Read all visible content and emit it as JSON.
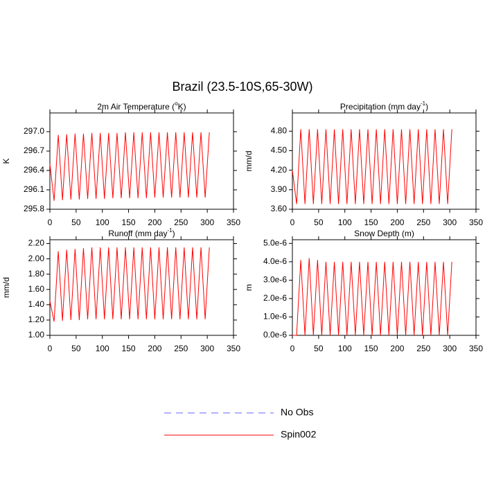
{
  "title": "Brazil (23.5-10S,65-30W)",
  "legend": [
    {
      "name": "No Obs",
      "color": "#6666ff",
      "dashed": true
    },
    {
      "name": "Spin002",
      "color": "#ff0000",
      "dashed": false
    }
  ],
  "chart_data": [
    {
      "type": "line",
      "title": "2m Air Temperature (",
      "title_sup": "o",
      "title_end": "K)",
      "ylabel": "K",
      "xlim": [
        0,
        350
      ],
      "xticks": [
        0,
        50,
        100,
        150,
        200,
        250,
        300,
        350
      ],
      "ylim": [
        295.8,
        297.29
      ],
      "yticks": [
        295.8,
        296.1,
        296.4,
        296.7,
        {
          "value": 297,
          "label": "297.0"
        }
      ],
      "x": [
        0,
        8,
        16,
        24,
        32,
        40,
        48,
        56,
        64,
        72,
        80,
        88,
        96,
        104,
        112,
        120,
        128,
        136,
        144,
        152,
        160,
        168,
        176,
        184,
        192,
        200,
        208,
        216,
        224,
        232,
        240,
        248,
        256,
        264,
        272,
        280,
        288,
        296,
        304
      ],
      "series": [
        {
          "name": "Spin002",
          "color": "#ff0000",
          "values": [
            296.5,
            295.93,
            296.95,
            295.94,
            296.96,
            295.95,
            296.97,
            295.95,
            296.97,
            295.96,
            296.98,
            295.96,
            296.98,
            295.96,
            296.98,
            295.97,
            296.98,
            295.97,
            296.99,
            295.97,
            296.99,
            295.97,
            296.99,
            295.97,
            296.99,
            295.98,
            296.99,
            295.98,
            296.99,
            295.98,
            296.99,
            295.98,
            296.99,
            295.98,
            296.99,
            295.98,
            296.99,
            295.98,
            296.99
          ]
        }
      ]
    },
    {
      "type": "line",
      "title": "Precipitation (mm day",
      "title_sup": "-1",
      "title_end": ")",
      "ylabel": "mm/d",
      "xlim": [
        0,
        350
      ],
      "xticks": [
        0,
        50,
        100,
        150,
        200,
        250,
        300,
        350
      ],
      "ylim": [
        3.6,
        5.08
      ],
      "yticks": [
        {
          "value": 3.6,
          "label": "3.60"
        },
        {
          "value": 3.9,
          "label": "3.90"
        },
        {
          "value": 4.2,
          "label": "4.20"
        },
        {
          "value": 4.5,
          "label": "4.50"
        },
        {
          "value": 4.8,
          "label": "4.80"
        }
      ],
      "x": [
        0,
        8,
        16,
        24,
        32,
        40,
        48,
        56,
        64,
        72,
        80,
        88,
        96,
        104,
        112,
        120,
        128,
        136,
        144,
        152,
        160,
        168,
        176,
        184,
        192,
        200,
        208,
        216,
        224,
        232,
        240,
        248,
        256,
        264,
        272,
        280,
        288,
        296,
        304
      ],
      "series": [
        {
          "name": "Spin002",
          "color": "#ff0000",
          "values": [
            4.2,
            3.68,
            4.83,
            3.68,
            4.83,
            3.68,
            4.83,
            3.68,
            4.83,
            3.68,
            4.83,
            3.68,
            4.83,
            3.68,
            4.83,
            3.68,
            4.83,
            3.68,
            4.83,
            3.68,
            4.83,
            3.68,
            4.83,
            3.68,
            4.83,
            3.68,
            4.83,
            3.68,
            4.83,
            3.68,
            4.83,
            3.68,
            4.83,
            3.68,
            4.83,
            3.68,
            4.83,
            3.68,
            4.83
          ]
        }
      ]
    },
    {
      "type": "line",
      "title": "Runoff (mm day",
      "title_sup": "-1",
      "title_end": ")",
      "ylabel": "mm/d",
      "xlim": [
        0,
        350
      ],
      "xticks": [
        0,
        50,
        100,
        150,
        200,
        250,
        300,
        350
      ],
      "ylim": [
        1.0,
        2.25
      ],
      "yticks": [
        {
          "value": 1,
          "label": "1.00"
        },
        {
          "value": 1.2,
          "label": "1.20"
        },
        {
          "value": 1.4,
          "label": "1.40"
        },
        {
          "value": 1.6,
          "label": "1.60"
        },
        {
          "value": 1.8,
          "label": "1.80"
        },
        {
          "value": 2,
          "label": "2.00"
        },
        {
          "value": 2.2,
          "label": "2.20"
        }
      ],
      "x": [
        0,
        8,
        16,
        24,
        32,
        40,
        48,
        56,
        64,
        72,
        80,
        88,
        96,
        104,
        112,
        120,
        128,
        136,
        144,
        152,
        160,
        168,
        176,
        184,
        192,
        200,
        208,
        216,
        224,
        232,
        240,
        248,
        256,
        264,
        272,
        280,
        288,
        296,
        304
      ],
      "series": [
        {
          "name": "Spin002",
          "color": "#ff0000",
          "values": [
            1.45,
            1.18,
            2.1,
            1.19,
            2.12,
            1.2,
            2.13,
            1.2,
            2.14,
            1.21,
            2.15,
            1.21,
            2.15,
            1.21,
            2.15,
            1.21,
            2.15,
            1.21,
            2.15,
            1.21,
            2.15,
            1.21,
            2.15,
            1.21,
            2.15,
            1.21,
            2.15,
            1.21,
            2.15,
            1.21,
            2.15,
            1.21,
            2.15,
            1.21,
            2.15,
            1.21,
            2.15,
            1.21,
            2.15
          ]
        }
      ]
    },
    {
      "type": "line",
      "title": "Snow Depth (m)",
      "ylabel": "m",
      "xlim": [
        0,
        350
      ],
      "xticks": [
        0,
        50,
        100,
        150,
        200,
        250,
        300,
        350
      ],
      "ylim": [
        0,
        5.2e-06
      ],
      "yticks": [
        {
          "value": 0,
          "label": "0.0e-6"
        },
        {
          "value": 1e-06,
          "label": "1.0e-6"
        },
        {
          "value": 2e-06,
          "label": "2.0e-6"
        },
        {
          "value": 3e-06,
          "label": "3.0e-6"
        },
        {
          "value": 4e-06,
          "label": "4.0e-6"
        },
        {
          "value": 5e-06,
          "label": "5.0e-6"
        }
      ],
      "x": [
        0,
        8,
        16,
        24,
        32,
        40,
        48,
        56,
        64,
        72,
        80,
        88,
        96,
        104,
        112,
        120,
        128,
        136,
        144,
        152,
        160,
        168,
        176,
        184,
        192,
        200,
        208,
        216,
        224,
        232,
        240,
        248,
        256,
        264,
        272,
        280,
        288,
        296,
        304
      ],
      "series": [
        {
          "name": "Spin002",
          "color": "#ff0000",
          "values": [
            0,
            0,
            4.1e-06,
            0,
            4.2e-06,
            0,
            4.1e-06,
            0,
            4e-06,
            0,
            4e-06,
            0,
            4e-06,
            0,
            4e-06,
            0,
            4e-06,
            0,
            4e-06,
            0,
            4e-06,
            0,
            4e-06,
            0,
            4e-06,
            0,
            4e-06,
            0,
            4e-06,
            0,
            4e-06,
            0,
            4e-06,
            0,
            4e-06,
            0,
            4e-06,
            0,
            4e-06
          ]
        }
      ]
    }
  ]
}
